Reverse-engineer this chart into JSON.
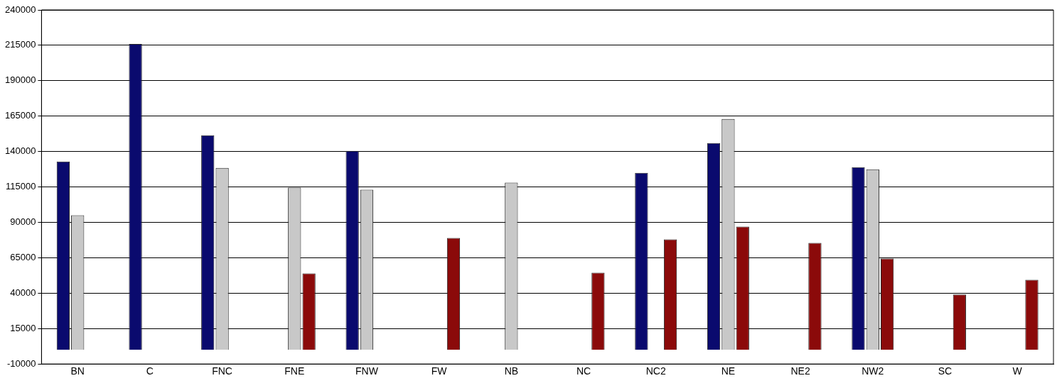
{
  "chart_data": {
    "type": "bar",
    "categories": [
      "BN",
      "C",
      "FNC",
      "FNE",
      "FNW",
      "FW",
      "NB",
      "NC",
      "NC2",
      "NE",
      "NE2",
      "NW2",
      "SC",
      "W"
    ],
    "series": [
      {
        "color": "#0a0a6e",
        "values": [
          133000,
          216000,
          151500,
          null,
          140500,
          null,
          null,
          null,
          125000,
          146000,
          null,
          129000,
          null,
          null
        ]
      },
      {
        "color": "#c8c8c8",
        "values": [
          95000,
          null,
          128500,
          114500,
          113000,
          null,
          118000,
          null,
          null,
          163000,
          null,
          127500,
          null,
          null
        ]
      },
      {
        "color": "#8b0a0a",
        "values": [
          null,
          null,
          null,
          54000,
          null,
          79000,
          null,
          54500,
          78000,
          87000,
          75500,
          64500,
          39000,
          49500
        ]
      }
    ],
    "ylim": [
      -10000,
      240000
    ],
    "yticks": [
      -10000,
      15000,
      40000,
      65000,
      90000,
      115000,
      140000,
      165000,
      190000,
      215000,
      240000
    ],
    "grid": "y",
    "legend": false
  }
}
